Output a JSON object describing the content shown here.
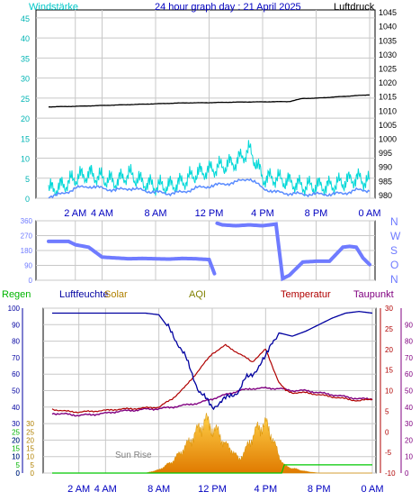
{
  "colors": {
    "wind_speed": "#00d8d8",
    "wind_avg": "#5a8cff",
    "pressure": "#000000",
    "direction": "#6f7bff",
    "humidity": "#0000a0",
    "temperature": "#b00000",
    "dewpoint": "#800080",
    "rain": "#00c800",
    "solar": "#e8a800",
    "aqi": "#808000",
    "grid": "#c8c8c8"
  },
  "labels": {
    "windstaerke": "Windstärke",
    "title": "24 hour graph day : 21 April 2025",
    "luftdruck": "Luftdruck",
    "regen": "Regen",
    "luftfeuchte": "Luftfeuchte",
    "solar": "Solar",
    "aqi": "AQI",
    "temperatur": "Temperatur",
    "taupunkt": "Taupunkt",
    "sunrise": "Sun Rise"
  },
  "compass": [
    "N",
    "W",
    "S",
    "O",
    "N"
  ],
  "chart_data": [
    {
      "type": "line",
      "panel": "wind_pressure",
      "title": "24 hour graph day : 21 April 2025",
      "x_ticks": [
        "2 AM",
        "4 AM",
        "8 AM",
        "12 PM",
        "4 PM",
        "8 PM",
        "0 AM"
      ],
      "left_axis": {
        "label": "Windstärke",
        "range": [
          0,
          47
        ],
        "ticks": [
          0,
          5,
          10,
          15,
          20,
          25,
          30,
          35,
          40,
          45
        ]
      },
      "right_axis": {
        "label": "Luftdruck",
        "range": [
          979,
          1046
        ],
        "ticks": [
          980,
          985,
          990,
          995,
          1000,
          1005,
          1010,
          1015,
          1020,
          1025,
          1030,
          1035,
          1040,
          1045
        ]
      },
      "series": [
        {
          "key": "pressure",
          "axis": "right",
          "x": [
            0,
            2,
            4,
            6,
            8,
            10,
            12,
            14,
            16,
            18,
            19,
            20,
            22,
            24
          ],
          "values": [
            1011.5,
            1011.7,
            1012.0,
            1012.3,
            1012.6,
            1012.9,
            1013.0,
            1013.2,
            1013.3,
            1013.4,
            1014.5,
            1014.6,
            1015.2,
            1015.8
          ]
        },
        {
          "key": "wind_speed",
          "axis": "left",
          "x": [
            0,
            1,
            2,
            3,
            4,
            5,
            6,
            7,
            8,
            9,
            10,
            11,
            12,
            13,
            14,
            15,
            15.5,
            16,
            17,
            18,
            19,
            20,
            21,
            22,
            23,
            24
          ],
          "values": [
            2,
            3,
            5,
            6,
            5,
            4,
            6,
            4,
            3,
            3,
            4,
            6,
            7,
            8,
            9,
            12,
            9,
            5,
            5,
            4,
            3,
            3,
            3,
            4,
            5,
            4
          ]
        },
        {
          "key": "wind_avg",
          "axis": "left",
          "x": [
            0,
            1,
            2,
            3,
            4,
            5,
            6,
            7,
            8,
            9,
            10,
            11,
            12,
            13,
            14,
            15,
            16,
            17,
            18,
            19,
            20,
            21,
            22,
            23,
            24
          ],
          "values": [
            0.5,
            1,
            2.5,
            3,
            2.5,
            2,
            2.5,
            2,
            1.5,
            1.2,
            1.5,
            2.5,
            3,
            3.5,
            4,
            5,
            2.5,
            1.5,
            1.2,
            1,
            1,
            1,
            1.2,
            2,
            2
          ]
        }
      ]
    },
    {
      "type": "line",
      "panel": "wind_direction",
      "left_axis": {
        "range": [
          0,
          360
        ],
        "ticks": [
          0,
          90,
          180,
          270,
          360
        ]
      },
      "right_axis": {
        "ticks": [
          "N",
          "O",
          "S",
          "W",
          "N"
        ]
      },
      "series": [
        {
          "key": "direction",
          "x": [
            0,
            1.5,
            2,
            3,
            4,
            5,
            6,
            7,
            8,
            9,
            10,
            11,
            12,
            12.4,
            12.6,
            13,
            14,
            15,
            16,
            17,
            17.5,
            18,
            19,
            20,
            21,
            22,
            22.5,
            23,
            23.5,
            24
          ],
          "values": [
            235,
            235,
            215,
            200,
            140,
            135,
            130,
            132,
            130,
            128,
            132,
            130,
            125,
            40,
            345,
            335,
            330,
            335,
            330,
            340,
            10,
            30,
            110,
            115,
            115,
            200,
            205,
            200,
            135,
            95
          ]
        }
      ]
    },
    {
      "type": "line",
      "panel": "climate",
      "left_axis": {
        "label": "Regen",
        "range": [
          0,
          100
        ],
        "ticks": [
          0,
          5,
          10,
          15,
          20,
          25,
          30,
          35,
          40,
          45,
          50,
          55,
          60,
          65,
          70,
          75,
          80,
          85,
          90,
          95,
          100
        ]
      },
      "right_axis_temp": {
        "label": "Temperatur",
        "range": [
          -10,
          30
        ],
        "ticks": [
          -10,
          -5,
          0,
          5,
          10,
          15,
          20,
          25,
          30
        ]
      },
      "right_axis_dew": {
        "label": "Taupunkt",
        "range": [
          0,
          100
        ],
        "ticks": [
          0,
          10,
          20,
          30,
          40,
          50,
          60,
          70,
          80,
          90
        ]
      },
      "annotations": [
        "Sun Rise"
      ],
      "series": [
        {
          "key": "humidity",
          "name": "Luftfeuchte",
          "x": [
            0,
            1,
            2,
            3,
            4,
            5,
            6,
            7,
            8,
            9,
            10,
            11,
            12,
            13,
            14,
            14.5,
            15,
            16,
            16.5,
            17,
            18,
            19,
            20,
            21,
            22,
            23,
            24
          ],
          "values": [
            97,
            97,
            97,
            97,
            97,
            97,
            97,
            97,
            96,
            85,
            70,
            50,
            40,
            45,
            50,
            57,
            60,
            70,
            80,
            85,
            83,
            86,
            90,
            94,
            97,
            98,
            97
          ]
        },
        {
          "key": "temperature",
          "name": "Temperatur",
          "x": [
            0,
            1,
            2,
            3,
            4,
            5,
            6,
            7,
            8,
            9,
            10,
            11,
            12,
            13,
            14,
            15,
            16,
            16.5,
            17,
            17.5,
            18,
            19,
            20,
            21,
            22,
            23,
            24
          ],
          "values": [
            5.5,
            5.0,
            4.8,
            5.0,
            5.2,
            5.5,
            5.6,
            5.8,
            6.0,
            8.0,
            11,
            15,
            19,
            21,
            19,
            17,
            20,
            16,
            12,
            10,
            9.5,
            9.5,
            9,
            8.5,
            8,
            7.5,
            8
          ]
        },
        {
          "key": "dewpoint",
          "name": "Taupunkt",
          "x": [
            0,
            1,
            2,
            3,
            4,
            5,
            6,
            7,
            8,
            9,
            10,
            11,
            12,
            13,
            14,
            15,
            16,
            17,
            18,
            19,
            20,
            21,
            22,
            23,
            24
          ],
          "values": [
            4.5,
            4.3,
            4.0,
            4.2,
            4.5,
            5.0,
            5.2,
            5.5,
            5.6,
            6.0,
            6.5,
            7.0,
            8.0,
            9.0,
            10.0,
            10.5,
            10.6,
            10.5,
            10.0,
            10.0,
            9.5,
            9.0,
            8.5,
            8.0,
            8.0
          ]
        },
        {
          "key": "rain",
          "name": "Regen",
          "x": [
            0,
            17.2,
            17.4,
            18,
            24
          ],
          "values": [
            0,
            0,
            5,
            5,
            5
          ]
        },
        {
          "key": "solar",
          "name": "Solar",
          "x": [
            0,
            7,
            8,
            9,
            10,
            11,
            11.5,
            12,
            12.5,
            13,
            13.5,
            14,
            14.5,
            15,
            15.5,
            16,
            16.5,
            17,
            17.5,
            18,
            19,
            20,
            24
          ],
          "values": [
            0,
            0,
            2,
            7,
            16,
            27,
            32,
            27,
            24,
            17,
            14,
            8,
            14,
            22,
            28,
            30,
            22,
            10,
            4,
            3,
            1,
            0,
            0
          ]
        }
      ]
    }
  ]
}
